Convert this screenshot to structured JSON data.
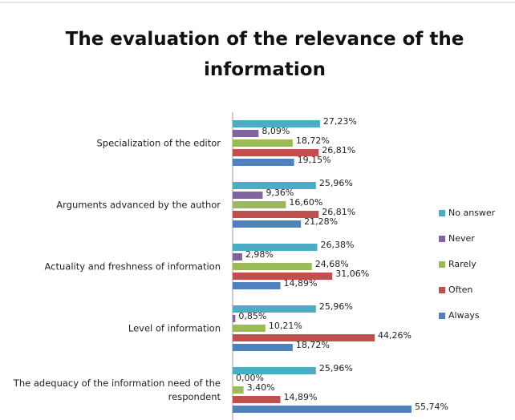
{
  "chart_data": {
    "type": "hbar",
    "title": "The evaluation of the relevance of the information",
    "categories": [
      "Specialization of the editor",
      "Arguments advanced by the author",
      "Actuality and freshness of information",
      "Level of information",
      "The adequacy of the information need of the respondent"
    ],
    "series": [
      {
        "name": "No answer",
        "color": "#4bacc6",
        "values": [
          27.23,
          25.96,
          26.38,
          25.96,
          25.96
        ],
        "value_labels": [
          "27,23%",
          "25,96%",
          "26,38%",
          "25,96%",
          "25,96%"
        ]
      },
      {
        "name": "Never",
        "color": "#8064a2",
        "values": [
          8.09,
          9.36,
          2.98,
          0.85,
          0.0
        ],
        "value_labels": [
          "8,09%",
          "9,36%",
          "2,98%",
          "0,85%",
          "0,00%"
        ]
      },
      {
        "name": "Rarely",
        "color": "#9bbb59",
        "values": [
          18.72,
          16.6,
          24.68,
          10.21,
          3.4
        ],
        "value_labels": [
          "18,72%",
          "16,60%",
          "24,68%",
          "10,21%",
          "3,40%"
        ]
      },
      {
        "name": "Often",
        "color": "#c0504d",
        "values": [
          26.81,
          26.81,
          31.06,
          44.26,
          14.89
        ],
        "value_labels": [
          "26,81%",
          "26,81%",
          "31,06%",
          "44,26%",
          "14,89%"
        ]
      },
      {
        "name": "Always",
        "color": "#4f81bd",
        "values": [
          19.15,
          21.28,
          14.89,
          18.72,
          55.74
        ],
        "value_labels": [
          "19,15%",
          "21,28%",
          "14,89%",
          "18,72%",
          "55,74%"
        ]
      }
    ],
    "xlim": [
      0,
      60
    ],
    "legend": "right"
  }
}
